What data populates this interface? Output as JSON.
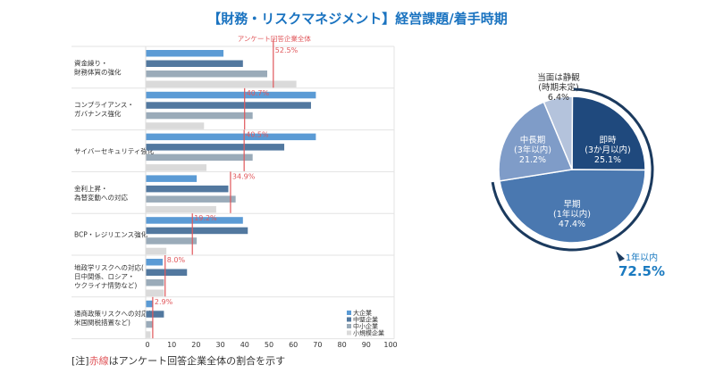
{
  "title": "【財務・リスクマネジメント】経営課題/着手時期",
  "note": {
    "prefix": "[注]",
    "red": "赤線",
    "suffix": "はアンケート回答企業全体の割合を示す"
  },
  "chart_data": [
    {
      "type": "bar",
      "orientation": "horizontal",
      "categories": [
        "資金繰り・\n財務体質の強化",
        "コンプライアンス・\nガバナンス強化",
        "サイバーセキュリティ強化",
        "金利上昇・\n為替変動への対応",
        "BCP・レジリエンス強化",
        "地政学リスクへの対応(\n日中関係、ロシア・\nウクライナ情勢など)",
        "通商政策リスクへの対応(\n米国関税措置など)"
      ],
      "series": [
        {
          "name": "大企業",
          "color": "#5b9bd5",
          "values": [
            32,
            70,
            70,
            21,
            40,
            7,
            3
          ]
        },
        {
          "name": "中堅企業",
          "color": "#52789f",
          "values": [
            40,
            68,
            57,
            34,
            42,
            17,
            7.5
          ]
        },
        {
          "name": "中小企業",
          "color": "#9aabb9",
          "values": [
            50,
            44,
            44,
            37,
            21,
            7.5,
            3
          ]
        },
        {
          "name": "小規模企業",
          "color": "#dadada",
          "values": [
            62,
            24,
            25,
            29,
            8.5,
            7.5,
            2
          ]
        }
      ],
      "reference": {
        "name": "アンケート回答企業全体",
        "color": "#e0575b",
        "values": [
          52.5,
          40.7,
          40.5,
          34.9,
          19.2,
          8.0,
          2.9
        ],
        "labels": [
          "52.5%",
          "40.7%",
          "40.5%",
          "34.9%",
          "19.2%",
          "8.0%",
          "2.9%"
        ]
      },
      "xlim": [
        0,
        100
      ],
      "xticks": [
        "0",
        "10",
        "20",
        "30",
        "40",
        "50",
        "60",
        "70",
        "80",
        "90",
        "100"
      ],
      "legend": "bottom-right",
      "grid": false
    },
    {
      "type": "pie",
      "slices": [
        {
          "label": "即時",
          "sub": "(3か月以内)",
          "value": 25.1,
          "text": "25.1%",
          "color": "#1f497d"
        },
        {
          "label": "早期",
          "sub": "(1年以内)",
          "value": 47.4,
          "text": "47.4%",
          "color": "#4a78b0"
        },
        {
          "label": "中長期",
          "sub": "(3年以内)",
          "value": 21.2,
          "text": "21.2%",
          "color": "#7f9cc8"
        },
        {
          "label": "当面は静観",
          "sub": "(時期未定)",
          "value": 6.4,
          "text": "6.4%",
          "color": "#b4c3dc"
        }
      ],
      "callout": {
        "label": "1年以内",
        "value": "72.5%",
        "color": "#1a7ac0"
      }
    }
  ]
}
